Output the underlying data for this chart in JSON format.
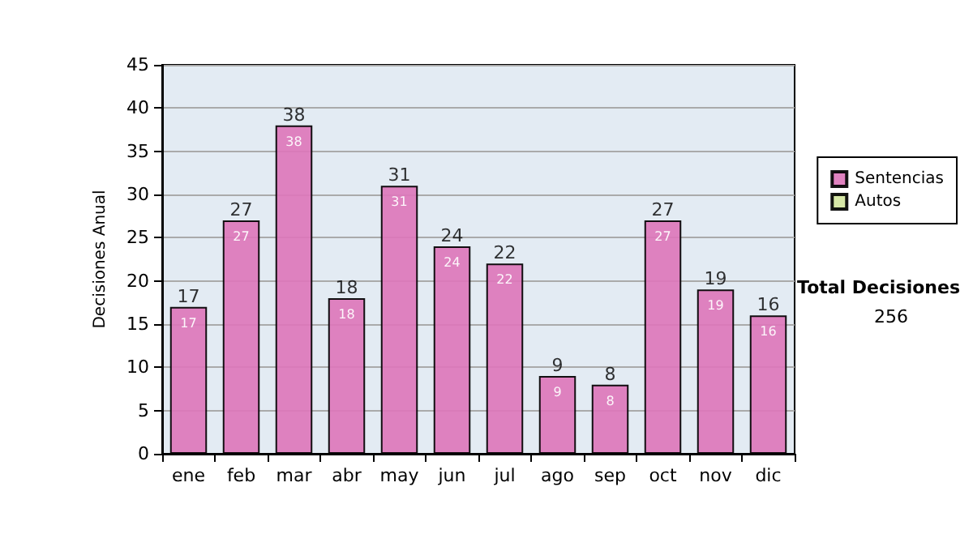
{
  "chart_data": {
    "type": "bar",
    "stacked": true,
    "ylabel": "Decisiones Anual",
    "categories": [
      "ene",
      "feb",
      "mar",
      "abr",
      "may",
      "jun",
      "jul",
      "ago",
      "sep",
      "oct",
      "nov",
      "dic"
    ],
    "series": [
      {
        "name": "Sentencias",
        "color": "#dd77bb",
        "values": [
          17,
          27,
          38,
          18,
          31,
          24,
          22,
          9,
          8,
          27,
          19,
          16
        ],
        "value_labels": [
          "17",
          "27",
          "38",
          "18",
          "31",
          "24",
          "22",
          "9",
          "8",
          "27",
          "19",
          "16"
        ]
      },
      {
        "name": "Autos",
        "color": "#d4e6a0",
        "values": [
          0,
          0,
          0,
          0,
          0,
          0,
          0,
          0,
          0,
          0,
          0,
          0
        ]
      }
    ],
    "totals": [
      "17",
      "27",
      "38",
      "18",
      "31",
      "24",
      "22",
      "9",
      "8",
      "27",
      "19",
      "16"
    ],
    "ylim": [
      0,
      45
    ],
    "yticks": [
      0,
      5,
      10,
      15,
      20,
      25,
      30,
      35,
      40,
      45
    ],
    "grid": "y",
    "legend": "right",
    "annotations": [
      "Total Decisiones",
      "256"
    ]
  }
}
